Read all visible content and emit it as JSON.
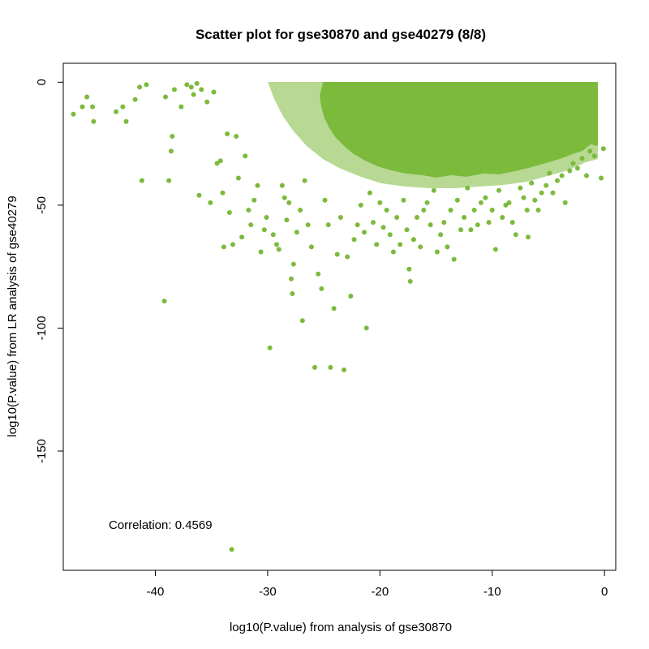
{
  "chart_data": {
    "type": "scatter",
    "title": "Scatter plot for gse30870 and gse40279 (8/8)",
    "xlabel": "log10(P.value) from analysis of gse30870",
    "ylabel": "log10(P.value) from LR analysis of gse40279",
    "xlim": [
      -48.2,
      1.0
    ],
    "ylim": [
      -198.5,
      7.7
    ],
    "xticks": [
      -40,
      -30,
      -20,
      -10,
      0
    ],
    "yticks": [
      0,
      -50,
      -100,
      -150
    ],
    "xtick_labels": [
      "-40",
      "-30",
      "-20",
      "-10",
      "0"
    ],
    "ytick_labels": [
      "0",
      "-50",
      "-100",
      "-150"
    ],
    "point_color": "#7cba3c",
    "grid": false,
    "annotation": {
      "text": "Correlation: 0.4569",
      "x": -45.5,
      "y": -180
    },
    "series": [
      {
        "points": [
          [
            -47.3,
            -13
          ],
          [
            -46.5,
            -10
          ],
          [
            -46.1,
            -6
          ],
          [
            -45.6,
            -10
          ],
          [
            -45.5,
            -16
          ],
          [
            -43.5,
            -12
          ],
          [
            -42.9,
            -10
          ],
          [
            -42.6,
            -16
          ],
          [
            -41.8,
            -7
          ],
          [
            -41.4,
            -2
          ],
          [
            -41.2,
            -40
          ],
          [
            -40.8,
            -1
          ],
          [
            -39.2,
            -89
          ],
          [
            -39.1,
            -6
          ],
          [
            -38.8,
            -40
          ],
          [
            -38.6,
            -28
          ],
          [
            -38.5,
            -22
          ],
          [
            -38.3,
            -3
          ],
          [
            -37.7,
            -10
          ],
          [
            -37.2,
            -1
          ],
          [
            -36.8,
            -2
          ],
          [
            -36.6,
            -5
          ],
          [
            -36.3,
            -0.5
          ],
          [
            -36.1,
            -46
          ],
          [
            -35.9,
            -3
          ],
          [
            -35.4,
            -8
          ],
          [
            -35.1,
            -49
          ],
          [
            -34.8,
            -4
          ],
          [
            -34.5,
            -33
          ],
          [
            -34.2,
            -32
          ],
          [
            -34.0,
            -45
          ],
          [
            -33.9,
            -67
          ],
          [
            -33.6,
            -21
          ],
          [
            -33.4,
            -53
          ],
          [
            -33.2,
            -190
          ],
          [
            -33.1,
            -66
          ],
          [
            -32.8,
            -22
          ],
          [
            -32.6,
            -39
          ],
          [
            -32.3,
            -63
          ],
          [
            -32.0,
            -30
          ],
          [
            -31.7,
            -52
          ],
          [
            -31.5,
            -58
          ],
          [
            -31.2,
            -48
          ],
          [
            -30.9,
            -42
          ],
          [
            -30.6,
            -69
          ],
          [
            -30.3,
            -60
          ],
          [
            -30.1,
            -55
          ],
          [
            -29.8,
            -108
          ],
          [
            -29.5,
            -62
          ],
          [
            -29.2,
            -66
          ],
          [
            -29.0,
            -68
          ],
          [
            -28.7,
            -42
          ],
          [
            -28.5,
            -47
          ],
          [
            -28.3,
            -56
          ],
          [
            -28.1,
            -49
          ],
          [
            -27.9,
            -80
          ],
          [
            -27.8,
            -86
          ],
          [
            -27.7,
            -74
          ],
          [
            -27.4,
            -61
          ],
          [
            -27.1,
            -52
          ],
          [
            -26.9,
            -97
          ],
          [
            -26.7,
            -40
          ],
          [
            -26.4,
            -58
          ],
          [
            -26.1,
            -67
          ],
          [
            -25.8,
            -116
          ],
          [
            -25.5,
            -78
          ],
          [
            -25.2,
            -84
          ],
          [
            -24.9,
            -48
          ],
          [
            -24.6,
            -58
          ],
          [
            -24.4,
            -116
          ],
          [
            -24.1,
            -92
          ],
          [
            -23.8,
            -70
          ],
          [
            -23.5,
            -55
          ],
          [
            -23.2,
            -117
          ],
          [
            -22.9,
            -71
          ],
          [
            -22.6,
            -87
          ],
          [
            -22.3,
            -64
          ],
          [
            -22.0,
            -58
          ],
          [
            -21.7,
            -50
          ],
          [
            -21.4,
            -61
          ],
          [
            -21.2,
            -100
          ],
          [
            -20.9,
            -45
          ],
          [
            -20.6,
            -57
          ],
          [
            -20.3,
            -66
          ],
          [
            -20.0,
            -49
          ],
          [
            -19.7,
            -59
          ],
          [
            -19.4,
            -52
          ],
          [
            -19.1,
            -62
          ],
          [
            -18.8,
            -69
          ],
          [
            -18.5,
            -55
          ],
          [
            -18.2,
            -66
          ],
          [
            -17.9,
            -48
          ],
          [
            -17.6,
            -60
          ],
          [
            -17.4,
            -76
          ],
          [
            -17.3,
            -81
          ],
          [
            -17.0,
            -64
          ],
          [
            -16.7,
            -55
          ],
          [
            -16.4,
            -67
          ],
          [
            -16.1,
            -52
          ],
          [
            -15.8,
            -49
          ],
          [
            -15.5,
            -58
          ],
          [
            -15.2,
            -44
          ],
          [
            -14.9,
            -69
          ],
          [
            -14.6,
            -62
          ],
          [
            -14.3,
            -57
          ],
          [
            -14.0,
            -67
          ],
          [
            -13.7,
            -52
          ],
          [
            -13.4,
            -72
          ],
          [
            -13.1,
            -48
          ],
          [
            -12.8,
            -60
          ],
          [
            -12.5,
            -55
          ],
          [
            -12.2,
            -43
          ],
          [
            -11.9,
            -60
          ],
          [
            -11.6,
            -52
          ],
          [
            -11.3,
            -58
          ],
          [
            -11.0,
            -49
          ],
          [
            -10.6,
            -47
          ],
          [
            -10.3,
            -57
          ],
          [
            -10.0,
            -52
          ],
          [
            -9.7,
            -68
          ],
          [
            -9.4,
            -44
          ],
          [
            -9.1,
            -55
          ],
          [
            -8.8,
            -50
          ],
          [
            -8.5,
            -49
          ],
          [
            -8.2,
            -57
          ],
          [
            -7.9,
            -62
          ],
          [
            -7.5,
            -43
          ],
          [
            -7.2,
            -47
          ],
          [
            -6.9,
            -52
          ],
          [
            -6.8,
            -63
          ],
          [
            -6.5,
            -41
          ],
          [
            -6.2,
            -48
          ],
          [
            -5.9,
            -52
          ],
          [
            -5.6,
            -45
          ],
          [
            -5.2,
            -42
          ],
          [
            -4.9,
            -37
          ],
          [
            -4.6,
            -45
          ],
          [
            -4.2,
            -40
          ],
          [
            -3.8,
            -38
          ],
          [
            -3.5,
            -49
          ],
          [
            -3.1,
            -36
          ],
          [
            -2.8,
            -33
          ],
          [
            -2.4,
            -35
          ],
          [
            -2.0,
            -31
          ],
          [
            -1.6,
            -38
          ],
          [
            -1.3,
            -28
          ],
          [
            -0.9,
            -30
          ],
          [
            -0.3,
            -39
          ],
          [
            -0.1,
            -27
          ]
        ]
      }
    ]
  }
}
